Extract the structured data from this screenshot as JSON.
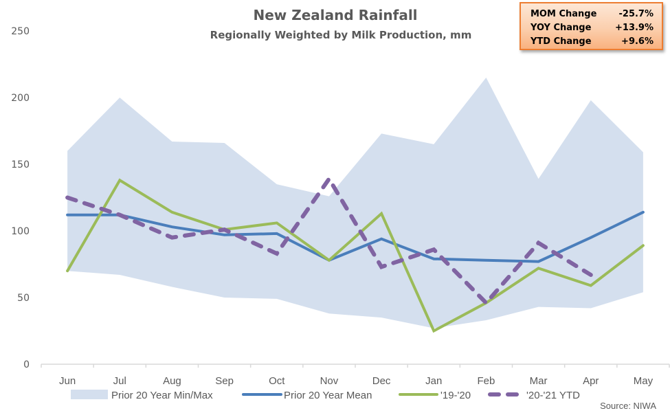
{
  "chart_data": {
    "type": "line",
    "title": "New Zealand Rainfall",
    "subtitle": "Regionally Weighted by Milk Production, mm",
    "xlabel": "",
    "ylabel": "",
    "ylim": [
      0,
      250
    ],
    "yticks": [
      "0",
      "50",
      "100",
      "150",
      "200",
      "250"
    ],
    "ytick_values": [
      0,
      50,
      100,
      150,
      200,
      250
    ],
    "grid": false,
    "legend_position": "bottom",
    "categories": [
      "Jun",
      "Jul",
      "Aug",
      "Sep",
      "Oct",
      "Nov",
      "Dec",
      "Jan",
      "Feb",
      "Mar",
      "Apr",
      "May"
    ],
    "band": {
      "name": "Prior 20 Year Min/Max",
      "color": "#d4dfee",
      "min": [
        70,
        67,
        58,
        50,
        49,
        38,
        35,
        27,
        33,
        43,
        42,
        54
      ],
      "max": [
        160,
        200,
        167,
        166,
        135,
        126,
        173,
        165,
        215,
        139,
        198,
        159
      ]
    },
    "series": [
      {
        "name": "Prior 20 Year Mean",
        "color": "#4a7ebb",
        "dash": false,
        "values": [
          112,
          112,
          103,
          97,
          98,
          78,
          94,
          79,
          78,
          77,
          95,
          114
        ]
      },
      {
        "name": "'19-'20",
        "color": "#9bbb59",
        "dash": false,
        "values": [
          70,
          138,
          114,
          101,
          106,
          78,
          113,
          25,
          46,
          72,
          59,
          89
        ]
      },
      {
        "name": "'20-'21 YTD",
        "color": "#8064a2",
        "dash": true,
        "values": [
          125,
          112,
          95,
          101,
          83,
          139,
          73,
          86,
          46,
          91,
          67,
          null
        ]
      }
    ],
    "source": "Source: NIWA"
  },
  "stats": [
    {
      "label": "MOM Change",
      "value": "-25.7%"
    },
    {
      "label": "YOY Change",
      "value": "+13.9%"
    },
    {
      "label": "YTD Change",
      "value": "+9.6%"
    }
  ]
}
